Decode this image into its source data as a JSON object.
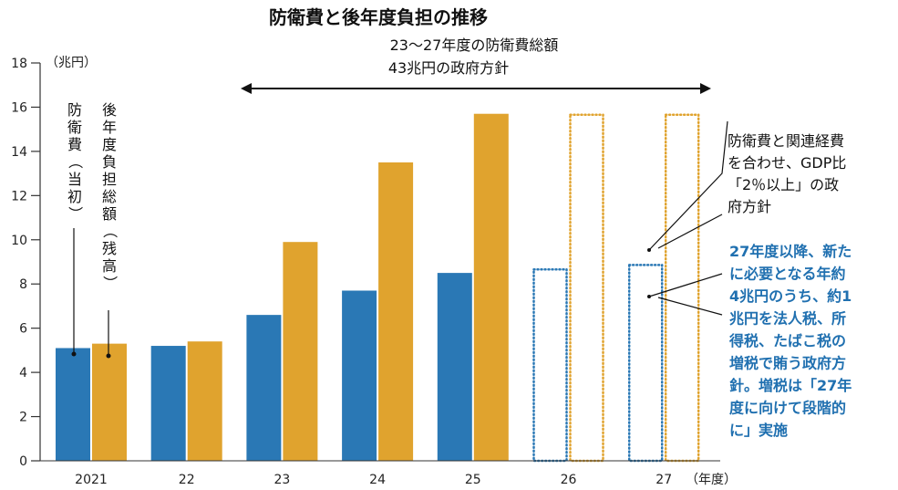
{
  "chart_data": {
    "type": "bar",
    "title": "防衛費と後年度負担の推移",
    "unit_label": "（兆円）",
    "xunit_label": "（年度）",
    "ylim": [
      0,
      18
    ],
    "yticks": [
      0,
      2,
      4,
      6,
      8,
      10,
      12,
      14,
      16,
      18
    ],
    "categories": [
      "2021",
      "22",
      "23",
      "24",
      "25",
      "26",
      "27"
    ],
    "series": [
      {
        "name": "防衛費（当初）",
        "color": "#2a78b5",
        "values": [
          5.1,
          5.2,
          6.6,
          7.7,
          8.5,
          8.7,
          8.9
        ],
        "style": [
          "solid",
          "solid",
          "solid",
          "solid",
          "solid",
          "dotted",
          "dotted"
        ]
      },
      {
        "name": "後年度負担総額（残高）",
        "color": "#e0a32e",
        "values": [
          5.3,
          5.4,
          9.9,
          13.5,
          15.7,
          15.7,
          15.7
        ],
        "style": [
          "solid",
          "solid",
          "solid",
          "solid",
          "solid",
          "dotted",
          "dotted"
        ]
      }
    ],
    "annotations": {
      "range_line1": "23～27年度の防衛費総額",
      "range_line2": "43兆円の政府方針",
      "gdp_note": [
        "防衛費と関連経費",
        "を合わせ、GDP比",
        "「2％以上」の政",
        "府方針"
      ],
      "tax_note": [
        "27年度以降、新た",
        "に必要となる年約",
        "4兆円のうち、約1",
        "兆円を法人税、所",
        "得税、たばこ税の",
        "増税で賄う政府方",
        "針。増税は「27年",
        "度に向けて段階的",
        "に」実施"
      ]
    }
  }
}
